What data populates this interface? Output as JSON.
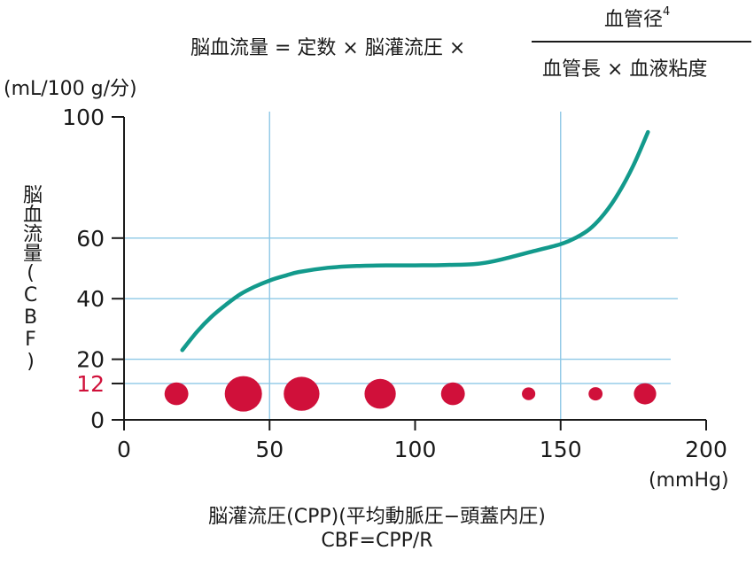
{
  "formula": {
    "lhs": "脳血流量 = 定数 × 脳灌流圧 ×",
    "numerator": "血管径",
    "numerator_sup": "4",
    "denominator": "血管長 × 血液粘度"
  },
  "y_unit": "(mL/100 g/分)",
  "x_unit": "(mmHg)",
  "x_label_line1": "脳灌流圧(CPP)(平均動脈圧−頭蓋内圧)",
  "x_label_line2": "CBF=CPP/R",
  "colors": {
    "curve": "#139a8c",
    "grid": "#8ec8e6",
    "vessel": "#d0103a",
    "axis": "#1a1a1a",
    "highlight_tick": "#d0103a"
  },
  "chart_data": {
    "type": "line",
    "title": "",
    "xlabel": "脳灌流圧(CPP)(平均動脈圧−頭蓋内圧)",
    "ylabel": "脳血流量(CBF)",
    "xlim": [
      0,
      200
    ],
    "ylim": [
      0,
      100
    ],
    "xticks": [
      0,
      50,
      100,
      150,
      200
    ],
    "yticks": [
      0,
      12,
      20,
      40,
      60,
      100
    ],
    "y_highlight_tick": 12,
    "vertical_gridlines": [
      50,
      150
    ],
    "horizontal_gridlines": [
      12,
      20,
      40,
      60
    ],
    "series": [
      {
        "x": [
          20,
          25,
          30,
          35,
          40,
          45,
          50,
          55,
          60,
          70,
          80,
          90,
          100,
          110,
          120,
          125,
          130,
          140,
          150,
          155,
          160,
          165,
          170,
          175,
          180
        ],
        "y": [
          23,
          29,
          34,
          38,
          41.5,
          44,
          46,
          47.5,
          48.8,
          50.2,
          50.8,
          51,
          51,
          51.1,
          51.4,
          52,
          53,
          55.5,
          58,
          60,
          63,
          68,
          75,
          84,
          95
        ]
      }
    ],
    "vessels": [
      {
        "x": 18,
        "size": 0.55
      },
      {
        "x": 41,
        "size": 1.0
      },
      {
        "x": 61,
        "size": 0.95
      },
      {
        "x": 88,
        "size": 0.8
      },
      {
        "x": 113,
        "size": 0.55
      },
      {
        "x": 139,
        "size": 0.2
      },
      {
        "x": 162,
        "size": 0.22
      },
      {
        "x": 179,
        "size": 0.5
      }
    ]
  }
}
